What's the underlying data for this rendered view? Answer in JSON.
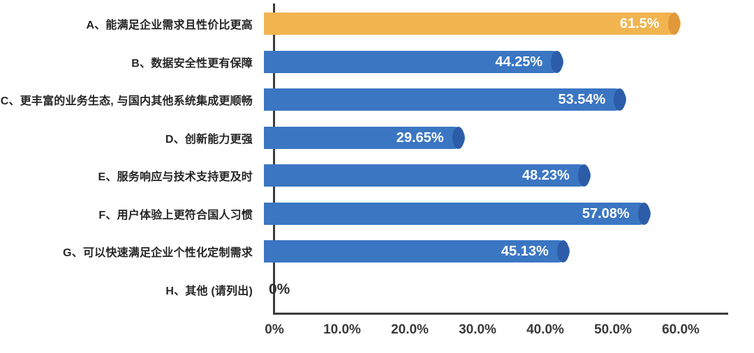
{
  "chart_data": {
    "type": "bar",
    "orientation": "horizontal",
    "title": "",
    "xlabel": "",
    "ylabel": "",
    "grid": false,
    "legend": false,
    "categories": [
      "A、能满足企业需求且性价比更高",
      "B、数据安全性更有保障",
      "C、更丰富的业务生态, 与国内其他系统集成更顺畅",
      "D、创新能力更强",
      "E、服务响应与技术支持更及时",
      "F、用户体验上更符合国人习惯",
      "G、可以快速满足企业个性化定制需求",
      "H、其他 (请列出)"
    ],
    "values": [
      61.5,
      44.25,
      53.54,
      29.65,
      48.23,
      57.08,
      45.13,
      0
    ],
    "value_labels": [
      "61.5%",
      "44.25%",
      "53.54%",
      "29.65%",
      "48.23%",
      "57.08%",
      "45.13%",
      "0%"
    ],
    "bar_colors": [
      "#F1B44F",
      "#3B76C3",
      "#3B76C3",
      "#3B76C3",
      "#3B76C3",
      "#3B76C3",
      "#3B76C3",
      null
    ],
    "bar_cap_colors": [
      "#E09838",
      "#2D5DA8",
      "#2D5DA8",
      "#2D5DA8",
      "#2D5DA8",
      "#2D5DA8",
      "#2D5DA8",
      null
    ],
    "highlight_color": "#F1B44F",
    "default_color": "#3B76C3",
    "axis_color": "#3C3C3C",
    "x_ticks": [
      "0%",
      "10.0%",
      "20.0%",
      "30.0%",
      "40.0%",
      "50.0%",
      "60.0%"
    ],
    "x_tick_values": [
      0,
      10,
      20,
      30,
      40,
      50,
      60
    ],
    "xlim": [
      0,
      67
    ]
  }
}
